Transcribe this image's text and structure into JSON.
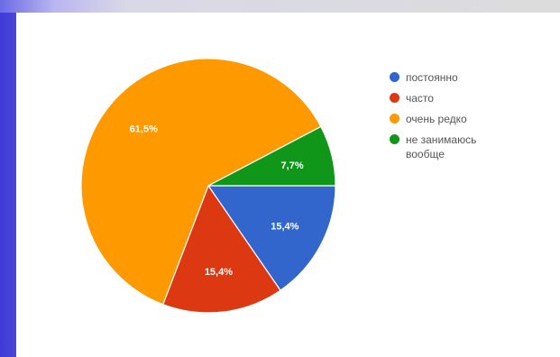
{
  "chart_data": {
    "type": "pie",
    "slices": [
      {
        "label": "постоянно",
        "value": 15.4,
        "display": "15,4%",
        "color": "#3366cc"
      },
      {
        "label": "часто",
        "value": 15.4,
        "display": "15,4%",
        "color": "#dc3912"
      },
      {
        "label": "очень редко",
        "value": 61.5,
        "display": "61,5%",
        "color": "#ff9900"
      },
      {
        "label": "не занимаюсь вообще",
        "value": 7.7,
        "display": "7,7%",
        "color": "#109618"
      }
    ],
    "legend_position": "right",
    "start": "3 o'clock",
    "direction": "clockwise"
  }
}
